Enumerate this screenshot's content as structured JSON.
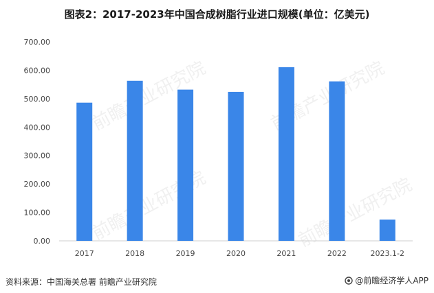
{
  "chart_data": {
    "type": "bar",
    "title": "图表2：2017-2023年中国合成树脂行业进口规模(单位：亿美元)",
    "categories": [
      "2017",
      "2018",
      "2019",
      "2020",
      "2021",
      "2022",
      "2023.1-2"
    ],
    "values": [
      486,
      563,
      532,
      524,
      611,
      561,
      75
    ],
    "ylim": [
      0,
      700
    ],
    "yticks": [
      "0.00",
      "100.00",
      "200.00",
      "300.00",
      "400.00",
      "500.00",
      "600.00",
      "700.00"
    ],
    "xlabel": "",
    "ylabel": "",
    "grid": false,
    "bar_color": "#3a86e8"
  },
  "watermark": "前瞻产业研究院",
  "footer": {
    "source": "资料来源：中国海关总署 前瞻产业研究院",
    "brand": "@前瞻经济学人APP"
  }
}
